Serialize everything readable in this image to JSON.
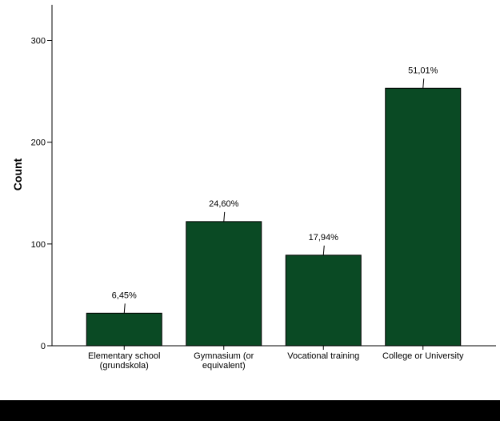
{
  "colors": {
    "bar_fill": "#0a4a24",
    "bar_stroke": "#000000",
    "axis": "#000000",
    "footer_band": "#000000"
  },
  "chart_data": {
    "type": "bar",
    "title": "",
    "xlabel": "",
    "ylabel": "Count",
    "categories": [
      [
        "Elementary school",
        "(grundskola)"
      ],
      [
        "Gymnasium (or",
        "equivalent)"
      ],
      [
        "Vocational training"
      ],
      [
        "College or University"
      ]
    ],
    "values": [
      32,
      122,
      89,
      253
    ],
    "data_labels": [
      "6,45%",
      "24,60%",
      "17,94%",
      "51,01%"
    ],
    "ylim": [
      0,
      335
    ],
    "yticks": [
      0,
      100,
      200,
      300
    ],
    "grid": false,
    "legend": "none"
  }
}
